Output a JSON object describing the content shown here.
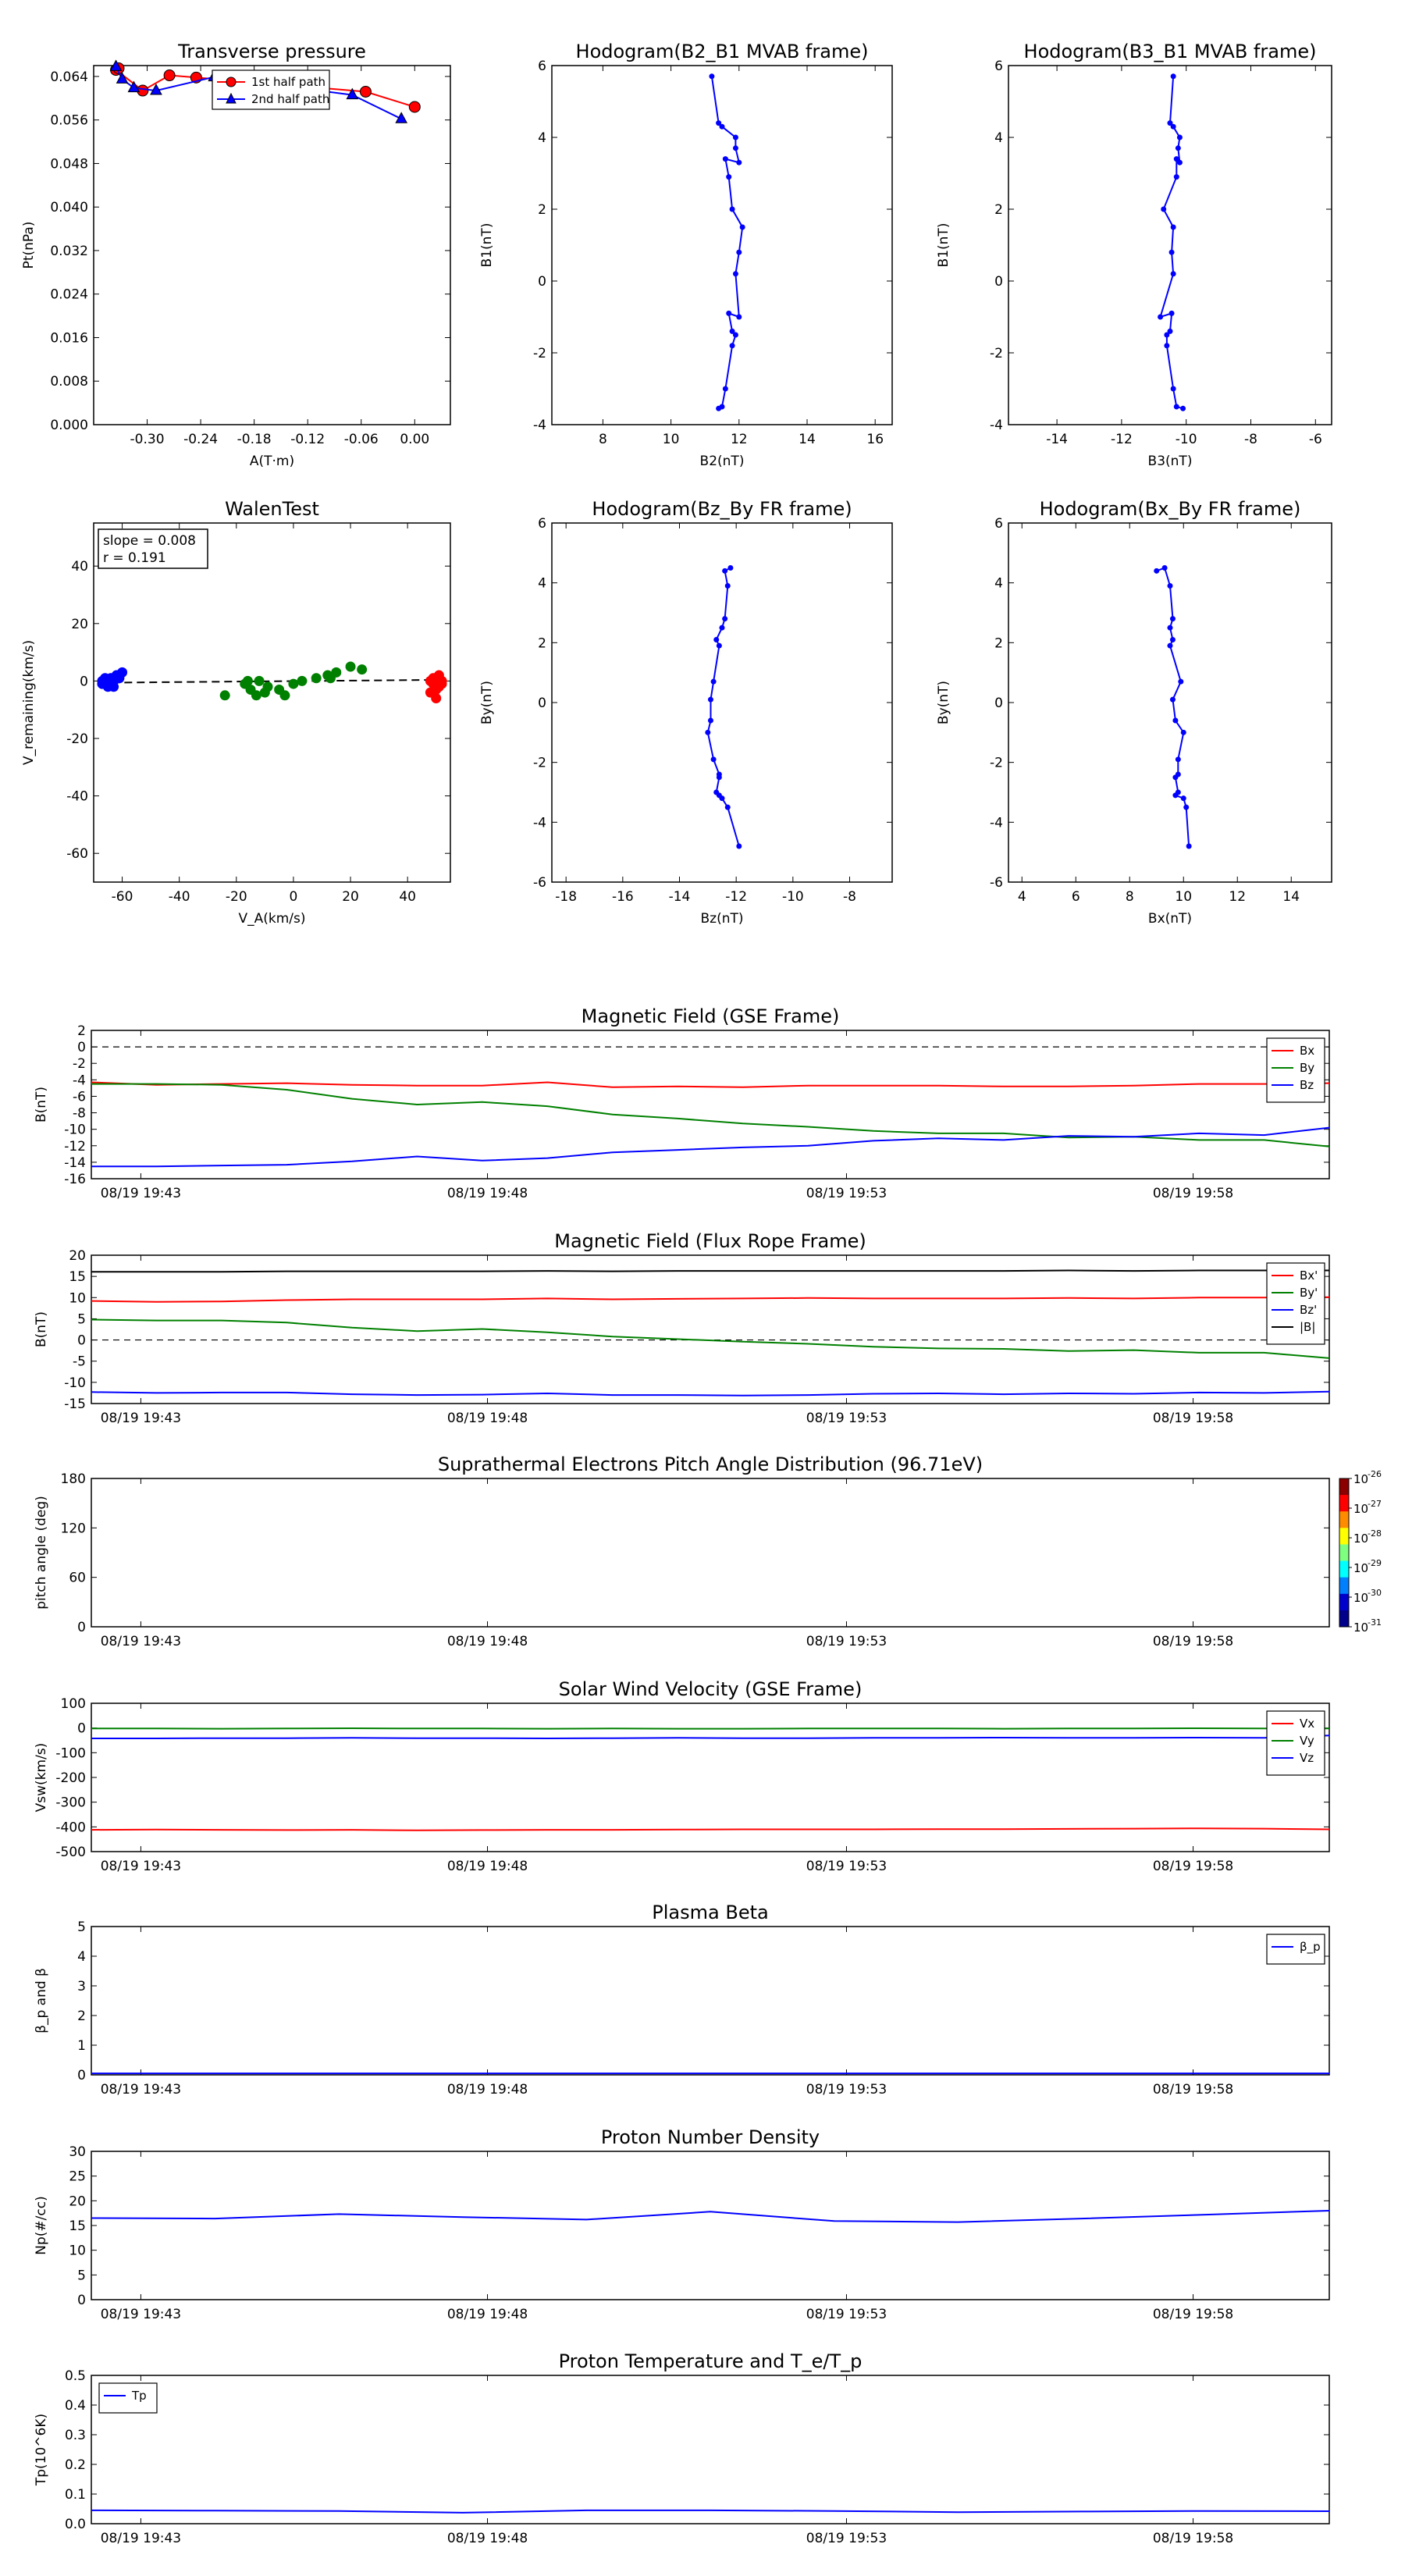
{
  "chart_data": [
    {
      "id": "transverse_pressure",
      "type": "line",
      "title": "Transverse pressure",
      "xlabel": "A(T·m)",
      "ylabel": "Pt(nPa)",
      "xlim": [
        -0.36,
        0.04
      ],
      "ylim": [
        0,
        0.066
      ],
      "xticks": [
        "-0.30",
        "-0.24",
        "-0.18",
        "-0.12",
        "-0.06",
        "0.00"
      ],
      "yticks": [
        "0.000",
        "0.008",
        "0.016",
        "0.024",
        "0.032",
        "0.040",
        "0.048",
        "0.056",
        "0.064"
      ],
      "legend": {
        "placement": "upper-right"
      },
      "series": [
        {
          "name": "1st half path",
          "color": "#ff0000",
          "marker": "circle",
          "x": [
            0.0,
            -0.055,
            -0.245,
            -0.275,
            -0.305,
            -0.335,
            -0.332
          ],
          "y": [
            0.0584,
            0.0612,
            0.0638,
            0.0642,
            0.0614,
            0.0652,
            0.0655
          ]
        },
        {
          "name": "2nd half path",
          "color": "#0000ff",
          "marker": "triangle",
          "x": [
            -0.015,
            -0.07,
            -0.225,
            -0.29,
            -0.315,
            -0.328,
            -0.335
          ],
          "y": [
            0.0562,
            0.0606,
            0.0639,
            0.0614,
            0.0619,
            0.0635,
            0.0658
          ]
        }
      ]
    },
    {
      "id": "hodo_b2_b1",
      "type": "line",
      "title": "Hodogram(B2_B1 MVAB frame)",
      "xlabel": "B2(nT)",
      "ylabel": "B1(nT)",
      "xlim": [
        6.5,
        16.5
      ],
      "ylim": [
        -4,
        6
      ],
      "xticks": [
        "8",
        "10",
        "12",
        "14",
        "16"
      ],
      "yticks": [
        "-4",
        "-2",
        "0",
        "2",
        "4",
        "6"
      ],
      "series": [
        {
          "name": "",
          "color": "#0000ff",
          "x": [
            11.2,
            11.4,
            11.5,
            11.9,
            11.9,
            12.0,
            11.6,
            11.7,
            11.8,
            12.1,
            12.0,
            11.9,
            12.0,
            11.7,
            11.8,
            11.9,
            11.8,
            11.6,
            11.5,
            11.4
          ],
          "y": [
            5.7,
            4.4,
            4.3,
            4.0,
            3.7,
            3.3,
            3.4,
            2.9,
            2.0,
            1.5,
            0.8,
            0.2,
            -1.0,
            -0.9,
            -1.4,
            -1.5,
            -1.8,
            -3.0,
            -3.5,
            -3.55
          ]
        }
      ]
    },
    {
      "id": "hodo_b3_b1",
      "type": "line",
      "title": "Hodogram(B3_B1 MVAB frame)",
      "xlabel": "B3(nT)",
      "ylabel": "B1(nT)",
      "xlim": [
        -15.5,
        -5.5
      ],
      "ylim": [
        -4,
        6
      ],
      "xticks": [
        "-14",
        "-12",
        "-10",
        "-8",
        "-6"
      ],
      "yticks": [
        "-4",
        "-2",
        "0",
        "2",
        "4",
        "6"
      ],
      "series": [
        {
          "name": "",
          "color": "#0000ff",
          "x": [
            -10.4,
            -10.5,
            -10.4,
            -10.2,
            -10.25,
            -10.2,
            -10.3,
            -10.3,
            -10.7,
            -10.4,
            -10.45,
            -10.4,
            -10.8,
            -10.45,
            -10.5,
            -10.6,
            -10.6,
            -10.4,
            -10.3,
            -10.1
          ],
          "y": [
            5.7,
            4.4,
            4.3,
            4.0,
            3.7,
            3.3,
            3.4,
            2.9,
            2.0,
            1.5,
            0.8,
            0.2,
            -1.0,
            -0.9,
            -1.4,
            -1.5,
            -1.8,
            -3.0,
            -3.5,
            -3.55
          ]
        }
      ]
    },
    {
      "id": "walen_test",
      "type": "scatter",
      "title": "WalenTest",
      "xlabel": "V_A(km/s)",
      "ylabel": "V_remaining(km/s)",
      "xlim": [
        -70,
        55
      ],
      "ylim": [
        -70,
        55
      ],
      "xticks": [
        "-60",
        "-40",
        "-20",
        "0",
        "20",
        "40"
      ],
      "yticks": [
        "-60",
        "-40",
        "-20",
        "0",
        "20",
        "40"
      ],
      "annotation": [
        "slope = 0.008",
        "r = 0.191"
      ],
      "fit": {
        "x": [
          -68,
          52
        ],
        "y": [
          -0.6,
          0.4
        ]
      },
      "series": [
        {
          "name": "",
          "color": "#0000ff",
          "x": [
            -67,
            -66,
            -65,
            -64,
            -63,
            -62,
            -61,
            -60,
            -65,
            -66,
            -63,
            -64,
            -67
          ],
          "y": [
            -1,
            0,
            -2,
            1,
            0,
            2,
            1,
            3,
            -1,
            1,
            -2,
            0,
            0
          ]
        },
        {
          "name": "",
          "color": "#008000",
          "x": [
            -24,
            -17,
            -15,
            -12,
            -13,
            -10,
            -5,
            -3,
            0,
            3,
            8,
            12,
            13,
            15,
            20,
            24,
            -16,
            -9
          ],
          "y": [
            -5,
            -1,
            -3,
            0,
            -5,
            -4,
            -3,
            -5,
            -1,
            0,
            1,
            2,
            1,
            3,
            5,
            4,
            0,
            -2
          ]
        },
        {
          "name": "",
          "color": "#ff0000",
          "x": [
            48,
            49,
            50,
            51,
            52,
            51,
            50,
            49,
            52,
            51,
            48,
            50,
            51
          ],
          "y": [
            0,
            -1,
            1,
            -2,
            0,
            2,
            -3,
            1,
            -1,
            0,
            -4,
            -6,
            1
          ]
        }
      ]
    },
    {
      "id": "hodo_bz_by",
      "type": "line",
      "title": "Hodogram(Bz_By FR frame)",
      "xlabel": "Bz(nT)",
      "ylabel": "By(nT)",
      "xlim": [
        -18.5,
        -6.5
      ],
      "ylim": [
        -6,
        6
      ],
      "xticks": [
        "-18",
        "-16",
        "-14",
        "-12",
        "-10",
        "-8"
      ],
      "yticks": [
        "-6",
        "-4",
        "-2",
        "0",
        "2",
        "4",
        "6"
      ],
      "series": [
        {
          "name": "",
          "color": "#0000ff",
          "x": [
            -12.2,
            -12.4,
            -12.3,
            -12.4,
            -12.5,
            -12.7,
            -12.6,
            -12.8,
            -12.9,
            -12.9,
            -13.0,
            -12.8,
            -12.6,
            -12.6,
            -12.7,
            -12.6,
            -12.5,
            -12.3,
            -11.9
          ],
          "y": [
            4.5,
            4.4,
            3.9,
            2.8,
            2.5,
            2.1,
            1.9,
            0.7,
            0.1,
            -0.6,
            -1.0,
            -1.9,
            -2.4,
            -2.5,
            -3.0,
            -3.1,
            -3.2,
            -3.5,
            -4.8
          ]
        }
      ]
    },
    {
      "id": "hodo_bx_by",
      "type": "line",
      "title": "Hodogram(Bx_By FR frame)",
      "xlabel": "Bx(nT)",
      "ylabel": "By(nT)",
      "xlim": [
        3.5,
        15.5
      ],
      "ylim": [
        -6,
        6
      ],
      "xticks": [
        "4",
        "6",
        "8",
        "10",
        "12",
        "14"
      ],
      "yticks": [
        "-6",
        "-4",
        "-2",
        "0",
        "2",
        "4",
        "6"
      ],
      "series": [
        {
          "name": "",
          "color": "#0000ff",
          "x": [
            9.0,
            9.3,
            9.5,
            9.6,
            9.5,
            9.6,
            9.5,
            9.9,
            9.6,
            9.7,
            10.0,
            9.8,
            9.8,
            9.7,
            9.8,
            9.7,
            10.0,
            10.1,
            10.2
          ],
          "y": [
            4.4,
            4.5,
            3.9,
            2.8,
            2.5,
            2.1,
            1.9,
            0.7,
            0.1,
            -0.6,
            -1.0,
            -1.9,
            -2.4,
            -2.5,
            -3.0,
            -3.1,
            -3.2,
            -3.5,
            -4.8
          ]
        }
      ]
    },
    {
      "id": "mag_gse",
      "type": "line",
      "title": "Magnetic Field (GSE Frame)",
      "ylabel": "B(nT)",
      "ylim": [
        -16,
        2
      ],
      "yticks": [
        "-16",
        "-14",
        "-12",
        "-10",
        "-8",
        "-6",
        "-4",
        "-2",
        "0",
        "2"
      ],
      "xtick_labels": [
        "08/19 19:43",
        "08/19 19:48",
        "08/19 19:53",
        "08/19 19:58"
      ],
      "zero_line": 0,
      "legend": {
        "placement": "upper-right"
      },
      "series": [
        {
          "name": "Bx",
          "color": "#ff0000",
          "values": [
            -4.3,
            -4.6,
            -4.5,
            -4.4,
            -4.6,
            -4.7,
            -4.7,
            -4.3,
            -4.9,
            -4.8,
            -4.9,
            -4.7,
            -4.7,
            -4.7,
            -4.8,
            -4.8,
            -4.7,
            -4.5,
            -4.5,
            -4.4
          ]
        },
        {
          "name": "By",
          "color": "#008000",
          "values": [
            -4.5,
            -4.5,
            -4.6,
            -5.2,
            -6.3,
            -7.0,
            -6.7,
            -7.2,
            -8.2,
            -8.7,
            -9.3,
            -9.7,
            -10.2,
            -10.5,
            -10.5,
            -11.0,
            -10.9,
            -11.3,
            -11.3,
            -12.1
          ]
        },
        {
          "name": "Bz",
          "color": "#0000ff",
          "values": [
            -14.5,
            -14.5,
            -14.4,
            -14.3,
            -13.9,
            -13.3,
            -13.8,
            -13.5,
            -12.8,
            -12.5,
            -12.2,
            -12.0,
            -11.4,
            -11.1,
            -11.3,
            -10.8,
            -10.9,
            -10.5,
            -10.7,
            -9.8
          ]
        }
      ]
    },
    {
      "id": "mag_fr",
      "type": "line",
      "title": "Magnetic Field (Flux Rope Frame)",
      "ylabel": "B(nT)",
      "ylim": [
        -15,
        20
      ],
      "yticks": [
        "-15",
        "-10",
        "-5",
        "0",
        "5",
        "10",
        "15",
        "20"
      ],
      "xtick_labels": [
        "08/19 19:43",
        "08/19 19:48",
        "08/19 19:53",
        "08/19 19:58"
      ],
      "zero_line": 0,
      "legend": {
        "placement": "upper-right"
      },
      "series": [
        {
          "name": "Bx'",
          "color": "#ff0000",
          "values": [
            9.2,
            9.0,
            9.1,
            9.4,
            9.6,
            9.6,
            9.6,
            9.8,
            9.6,
            9.7,
            9.8,
            9.9,
            9.8,
            9.8,
            9.8,
            9.9,
            9.8,
            10.0,
            10.0,
            10.1
          ]
        },
        {
          "name": "By'",
          "color": "#008000",
          "values": [
            4.8,
            4.6,
            4.6,
            4.1,
            2.9,
            2.1,
            2.6,
            1.8,
            0.8,
            0.2,
            -0.4,
            -0.9,
            -1.6,
            -2.0,
            -2.1,
            -2.6,
            -2.4,
            -3.0,
            -3.0,
            -4.3
          ]
        },
        {
          "name": "Bz'",
          "color": "#0000ff",
          "values": [
            -12.3,
            -12.5,
            -12.4,
            -12.4,
            -12.8,
            -13.0,
            -12.9,
            -12.6,
            -13.0,
            -13.0,
            -13.1,
            -13.0,
            -12.7,
            -12.6,
            -12.8,
            -12.6,
            -12.7,
            -12.4,
            -12.5,
            -12.2
          ]
        },
        {
          "name": "|B|",
          "color": "#000000",
          "values": [
            16.1,
            16.1,
            16.1,
            16.2,
            16.2,
            16.2,
            16.2,
            16.3,
            16.2,
            16.3,
            16.3,
            16.3,
            16.3,
            16.3,
            16.3,
            16.4,
            16.3,
            16.4,
            16.4,
            16.4
          ]
        }
      ]
    },
    {
      "id": "pad",
      "type": "heatmap",
      "title": "Suprathermal Electrons Pitch Angle Distribution (96.71eV)",
      "ylabel": "pitch angle (deg)",
      "ylim": [
        0,
        180
      ],
      "yticks": [
        "0",
        "60",
        "120",
        "180"
      ],
      "xtick_labels": [
        "08/19 19:43",
        "08/19 19:48",
        "08/19 19:53",
        "08/19 19:58"
      ],
      "colorbar": {
        "labels": [
          "10",
          "10",
          "10",
          "10",
          "10",
          "10"
        ],
        "exponents": [
          "-26",
          "-27",
          "-28",
          "-29",
          "-30",
          "-31"
        ]
      }
    },
    {
      "id": "vsw",
      "type": "line",
      "title": "Solar Wind Velocity (GSE Frame)",
      "ylabel": "Vsw(km/s)",
      "ylim": [
        -500,
        100
      ],
      "yticks": [
        "-500",
        "-400",
        "-300",
        "-200",
        "-100",
        "0",
        "100"
      ],
      "xtick_labels": [
        "08/19 19:43",
        "08/19 19:48",
        "08/19 19:53",
        "08/19 19:58"
      ],
      "legend": {
        "placement": "upper-right"
      },
      "series": [
        {
          "name": "Vx",
          "color": "#ff0000",
          "values": [
            -412,
            -411,
            -412,
            -413,
            -412,
            -414,
            -413,
            -412,
            -412,
            -411,
            -410,
            -410,
            -410,
            -409,
            -409,
            -408,
            -407,
            -406,
            -407,
            -410
          ]
        },
        {
          "name": "Vy",
          "color": "#008000",
          "values": [
            -2,
            -2,
            -3,
            -2,
            -1,
            -2,
            -2,
            -3,
            -2,
            -3,
            -3,
            -2,
            -2,
            -2,
            -3,
            -2,
            -2,
            -1,
            -2,
            -2
          ]
        },
        {
          "name": "Vz",
          "color": "#0000ff",
          "values": [
            -42,
            -42,
            -41,
            -41,
            -40,
            -41,
            -41,
            -42,
            -41,
            -40,
            -41,
            -41,
            -40,
            -40,
            -39,
            -40,
            -40,
            -39,
            -40,
            -30
          ]
        }
      ]
    },
    {
      "id": "beta",
      "type": "line",
      "title": "Plasma Beta",
      "ylabel": "β_p and β",
      "ylim": [
        0,
        5
      ],
      "yticks": [
        "0",
        "1",
        "2",
        "3",
        "4",
        "5"
      ],
      "xtick_labels": [
        "08/19 19:43",
        "08/19 19:48",
        "08/19 19:53",
        "08/19 19:58"
      ],
      "legend": {
        "placement": "upper-right"
      },
      "series": [
        {
          "name": "β_p",
          "color": "#0000ff",
          "values": [
            0.05,
            0.05,
            0.05,
            0.05,
            0.05,
            0.05,
            0.05,
            0.05,
            0.05,
            0.05,
            0.05,
            0.05,
            0.05,
            0.05,
            0.05,
            0.05,
            0.05,
            0.05,
            0.05,
            0.05
          ]
        }
      ]
    },
    {
      "id": "density",
      "type": "line",
      "title": "Proton Number Density",
      "ylabel": "Np(#/cc)",
      "ylim": [
        0,
        30
      ],
      "yticks": [
        "0",
        "5",
        "10",
        "15",
        "20",
        "25",
        "30"
      ],
      "xtick_labels": [
        "08/19 19:43",
        "08/19 19:48",
        "08/19 19:53",
        "08/19 19:58"
      ],
      "series": [
        {
          "name": "",
          "color": "#0000ff",
          "values": [
            16.5,
            16.4,
            17.3,
            16.7,
            16.2,
            17.8,
            15.9,
            15.7,
            16.4,
            17.2,
            18.0
          ]
        }
      ]
    },
    {
      "id": "temperature",
      "type": "line",
      "title": "Proton Temperature and T_e/T_p",
      "ylabel": "Tp(10^6K)",
      "ylim": [
        0,
        0.5
      ],
      "yticks": [
        "0.0",
        "0.1",
        "0.2",
        "0.3",
        "0.4",
        "0.5"
      ],
      "xtick_labels": [
        "08/19 19:43",
        "08/19 19:48",
        "08/19 19:53",
        "08/19 19:58"
      ],
      "legend": {
        "placement": "upper-left"
      },
      "series": [
        {
          "name": "Tp",
          "color": "#0000ff",
          "values": [
            0.045,
            0.044,
            0.043,
            0.037,
            0.045,
            0.045,
            0.043,
            0.039,
            0.041,
            0.043,
            0.042
          ]
        }
      ]
    }
  ]
}
